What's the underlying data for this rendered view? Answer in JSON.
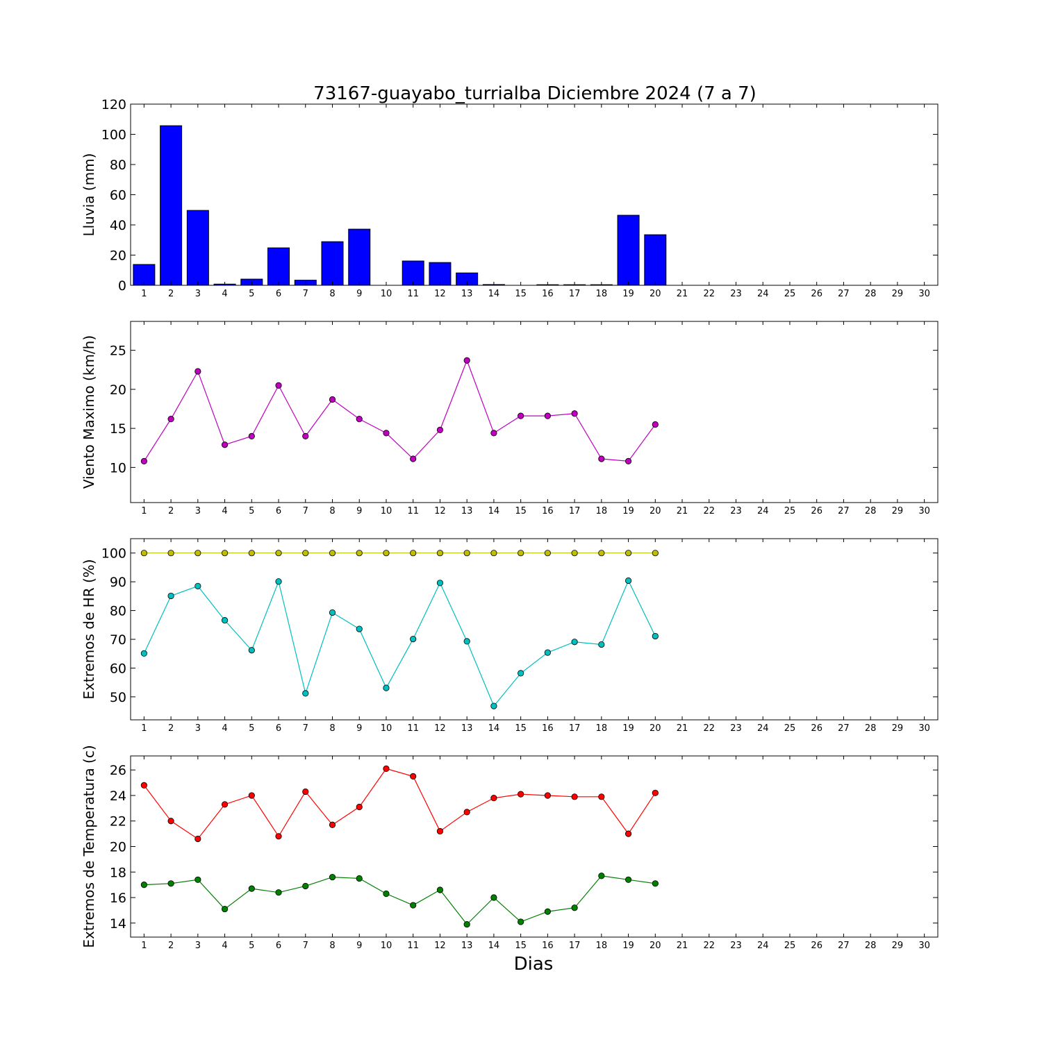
{
  "figure": {
    "title": "73167-guayabo_turrialba Diciembre 2024  (7 a 7)",
    "xlabel": "Dias"
  },
  "chart_data": [
    {
      "type": "bar",
      "ylabel": "Lluvia (mm)",
      "xlim": [
        0.5,
        30.5
      ],
      "ylim": [
        0,
        120
      ],
      "yticks": [
        0,
        20,
        40,
        60,
        80,
        100,
        120
      ],
      "xticks": [
        1,
        2,
        3,
        4,
        5,
        6,
        7,
        8,
        9,
        10,
        11,
        12,
        13,
        14,
        15,
        16,
        17,
        18,
        19,
        20,
        21,
        22,
        23,
        24,
        25,
        26,
        27,
        28,
        29,
        30
      ],
      "grid": false,
      "series": [
        {
          "color": "#0000ff",
          "x": [
            1,
            2,
            3,
            4,
            5,
            6,
            7,
            8,
            9,
            10,
            11,
            12,
            13,
            14,
            15,
            16,
            17,
            18,
            19,
            20
          ],
          "values": [
            13.8,
            105.7,
            49.6,
            0.8,
            4.1,
            24.8,
            3.4,
            28.9,
            37.2,
            0,
            16.1,
            15.1,
            8.2,
            0.5,
            0,
            0.4,
            0.4,
            0.4,
            46.4,
            33.5
          ]
        }
      ]
    },
    {
      "type": "line",
      "ylabel": "Viento Maximo (km/h)",
      "xlim": [
        0.5,
        30.5
      ],
      "ylim": [
        5.5,
        28.7
      ],
      "yticks": [
        10,
        15,
        20,
        25
      ],
      "xticks": [
        1,
        2,
        3,
        4,
        5,
        6,
        7,
        8,
        9,
        10,
        11,
        12,
        13,
        14,
        15,
        16,
        17,
        18,
        19,
        20,
        21,
        22,
        23,
        24,
        25,
        26,
        27,
        28,
        29,
        30
      ],
      "grid": false,
      "series": [
        {
          "color": "#bf00bf",
          "x": [
            1,
            2,
            3,
            4,
            5,
            6,
            7,
            8,
            9,
            10,
            11,
            12,
            13,
            14,
            15,
            16,
            17,
            18,
            19,
            20
          ],
          "values": [
            10.8,
            16.2,
            22.3,
            12.9,
            14.0,
            20.5,
            14.0,
            18.7,
            16.2,
            14.4,
            11.1,
            14.8,
            23.7,
            14.4,
            16.6,
            16.6,
            16.9,
            11.1,
            10.8,
            15.5
          ]
        }
      ]
    },
    {
      "type": "line",
      "ylabel": "Extremos de HR (%)",
      "xlim": [
        0.5,
        30.5
      ],
      "ylim": [
        42,
        105
      ],
      "yticks": [
        50,
        60,
        70,
        80,
        90,
        100
      ],
      "xticks": [
        1,
        2,
        3,
        4,
        5,
        6,
        7,
        8,
        9,
        10,
        11,
        12,
        13,
        14,
        15,
        16,
        17,
        18,
        19,
        20,
        21,
        22,
        23,
        24,
        25,
        26,
        27,
        28,
        29,
        30
      ],
      "grid": false,
      "series": [
        {
          "color": "#bfbf00",
          "x": [
            1,
            2,
            3,
            4,
            5,
            6,
            7,
            8,
            9,
            10,
            11,
            12,
            13,
            14,
            15,
            16,
            17,
            18,
            19,
            20
          ],
          "values": [
            100,
            100,
            100,
            100,
            100,
            100,
            100,
            100,
            100,
            100,
            100,
            100,
            100,
            100,
            100,
            100,
            100,
            100,
            100,
            100
          ]
        },
        {
          "color": "#00bfbf",
          "x": [
            1,
            2,
            3,
            4,
            5,
            6,
            7,
            8,
            9,
            10,
            11,
            12,
            13,
            14,
            15,
            16,
            17,
            18,
            19,
            20
          ],
          "values": [
            65.1,
            85.1,
            88.5,
            76.6,
            66.2,
            90.1,
            51.2,
            79.3,
            73.6,
            53.1,
            70.1,
            89.6,
            69.3,
            46.8,
            58.2,
            65.4,
            69.1,
            68.2,
            90.4,
            71.1
          ]
        }
      ]
    },
    {
      "type": "line",
      "ylabel": "Extremos de Temperatura (c)",
      "xlim": [
        0.5,
        30.5
      ],
      "ylim": [
        12.9,
        27.1
      ],
      "yticks": [
        14,
        16,
        18,
        20,
        22,
        24,
        26
      ],
      "xticks": [
        1,
        2,
        3,
        4,
        5,
        6,
        7,
        8,
        9,
        10,
        11,
        12,
        13,
        14,
        15,
        16,
        17,
        18,
        19,
        20,
        21,
        22,
        23,
        24,
        25,
        26,
        27,
        28,
        29,
        30
      ],
      "grid": false,
      "series": [
        {
          "color": "#ff0000",
          "x": [
            1,
            2,
            3,
            4,
            5,
            6,
            7,
            8,
            9,
            10,
            11,
            12,
            13,
            14,
            15,
            16,
            17,
            18,
            19,
            20
          ],
          "values": [
            24.8,
            22.0,
            20.6,
            23.3,
            24.0,
            20.8,
            24.3,
            21.7,
            23.1,
            26.1,
            25.5,
            21.2,
            22.7,
            23.8,
            24.1,
            24.0,
            23.9,
            23.9,
            21.0,
            24.2
          ]
        },
        {
          "color": "#007f00",
          "x": [
            1,
            2,
            3,
            4,
            5,
            6,
            7,
            8,
            9,
            10,
            11,
            12,
            13,
            14,
            15,
            16,
            17,
            18,
            19,
            20
          ],
          "values": [
            17.0,
            17.1,
            17.4,
            15.1,
            16.7,
            16.4,
            16.9,
            17.6,
            17.5,
            16.3,
            15.4,
            16.6,
            13.9,
            16.0,
            14.1,
            14.9,
            15.2,
            17.7,
            17.4,
            17.1
          ]
        }
      ]
    }
  ]
}
